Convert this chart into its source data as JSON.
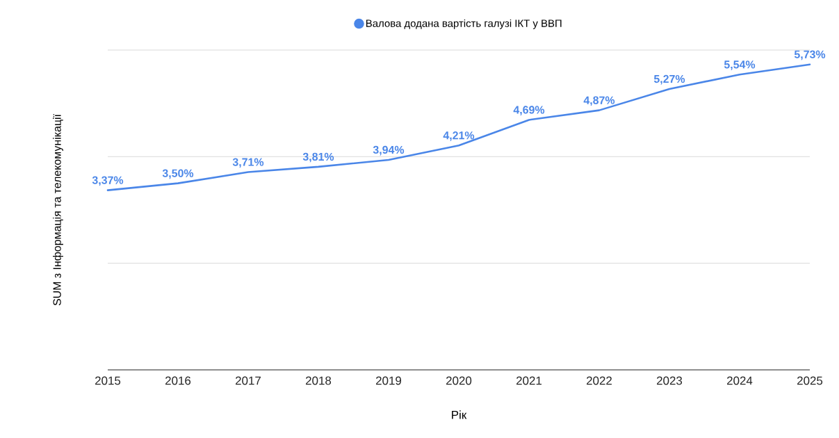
{
  "chart_data": {
    "type": "line",
    "xlabel": "Рік",
    "ylabel": "SUM з  Інформація та телекомунікації",
    "x": [
      2015,
      2016,
      2017,
      2018,
      2019,
      2020,
      2021,
      2022,
      2023,
      2024,
      2025
    ],
    "xlim": [
      2015,
      2025
    ],
    "xticks": [
      2015,
      2016,
      2017,
      2018,
      2019,
      2020,
      2021,
      2022,
      2023,
      2024,
      2025
    ],
    "ylim": [
      0,
      6
    ],
    "yticks": [
      {
        "value": 0,
        "label": null
      },
      {
        "value": 2,
        "label": null
      },
      {
        "value": 4,
        "label": null
      },
      {
        "value": 6,
        "label": null
      }
    ],
    "tick_labels": "x",
    "grid": "y",
    "legend": "top",
    "marker": "none",
    "line_style": "solid",
    "series": [
      {
        "name": "Валова додана вартість галузі ІКТ у ВВП",
        "color": "#4a86e8",
        "values": [
          3.37,
          3.5,
          3.71,
          3.81,
          3.94,
          4.21,
          4.69,
          4.87,
          5.27,
          5.54,
          5.73
        ],
        "value_labels": [
          "3,37%",
          "3,50%",
          "3,71%",
          "3,81%",
          "3,94%",
          "4,21%",
          "4,69%",
          "4,87%",
          "5,27%",
          "5,54%",
          "5,73%"
        ]
      }
    ]
  }
}
